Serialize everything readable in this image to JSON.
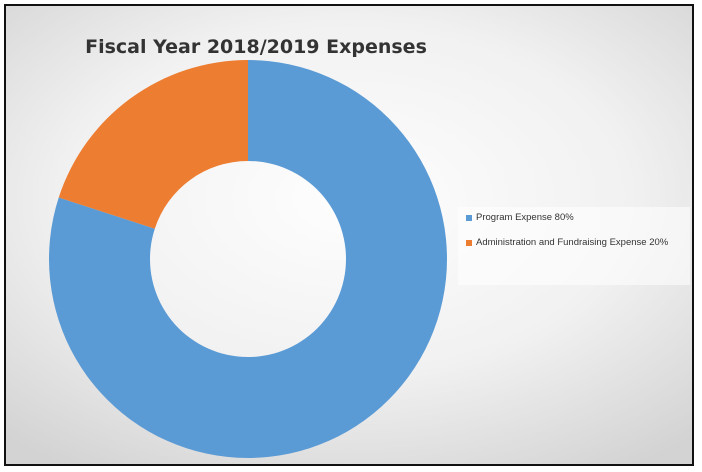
{
  "chart_data": {
    "type": "pie",
    "title": "Fiscal Year 2018/2019 Expenses",
    "donut": true,
    "legend_position": "right",
    "slices": [
      {
        "label": "Program Expense 80%",
        "value": 80,
        "color": "#5b9bd5"
      },
      {
        "label": "Administration and Fundraising Expense 20%",
        "value": 20,
        "color": "#ed7d31"
      }
    ]
  }
}
